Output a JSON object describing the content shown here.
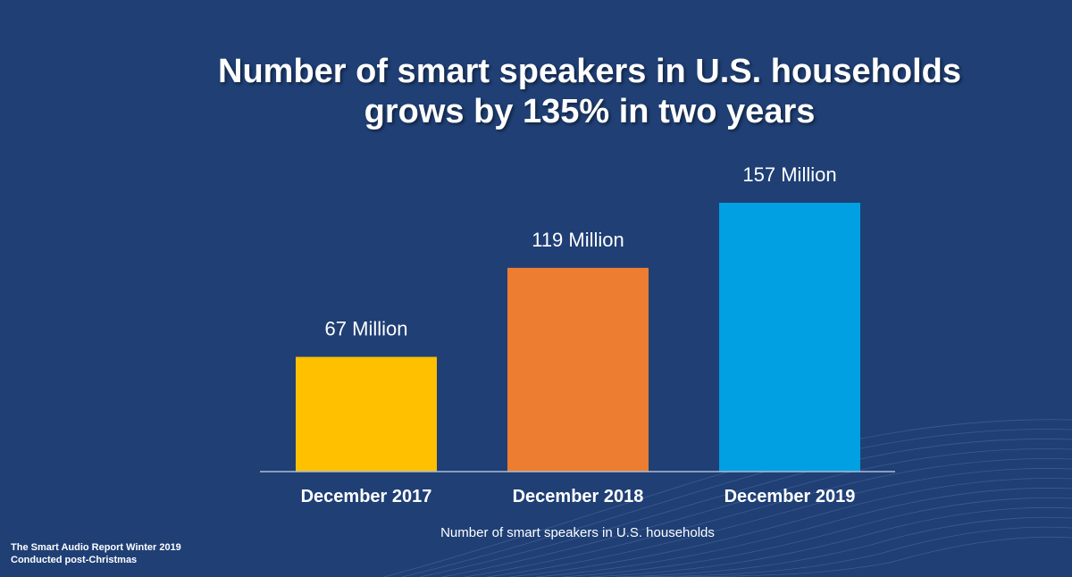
{
  "title_lines": [
    "Number of smart speakers in U.S. households",
    "grows by 135% in two years"
  ],
  "footnotes": [
    "The Smart Audio Report Winter 2019",
    "Conducted post-Christmas"
  ],
  "colors": {
    "background": "#1f3f75",
    "axis": "#aebcd4",
    "text": "#ffffff"
  },
  "chart_data": {
    "type": "bar",
    "categories": [
      "December 2017",
      "December 2018",
      "December 2019"
    ],
    "values": [
      67,
      119,
      157
    ],
    "data_labels": [
      "67 Million",
      "119 Million",
      "157 Million"
    ],
    "bar_colors": [
      "#ffc000",
      "#ed7d31",
      "#00a0e2"
    ],
    "xlabel": "Number of smart speakers in U.S. households",
    "ylabel": "",
    "ylim": [
      0,
      157
    ],
    "grid": false,
    "legend": "none"
  }
}
